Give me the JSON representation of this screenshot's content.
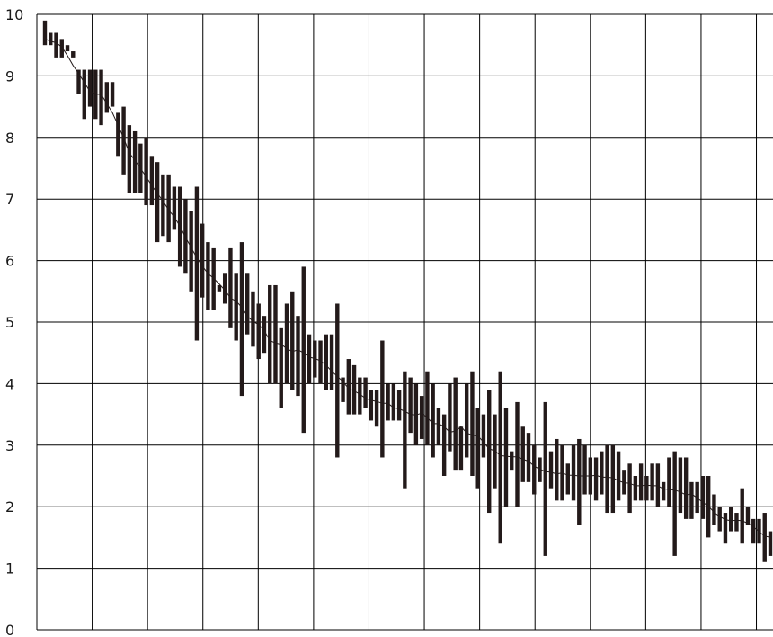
{
  "chart_data": {
    "type": "candlestick",
    "title": "",
    "xlabel": "",
    "ylabel": "",
    "ylim": [
      0,
      10
    ],
    "y_ticks": [
      0,
      1,
      2,
      3,
      4,
      5,
      6,
      7,
      8,
      9,
      10
    ],
    "y_tick_labels": [
      "0",
      "1",
      "2",
      "3",
      "4",
      "5",
      "6",
      "7",
      "8",
      "9",
      "10"
    ],
    "x_tick_labels": [],
    "x_vertical_gridlines": 14,
    "grid": true,
    "colors": {
      "bar": "#231a1a",
      "grid": "#000000",
      "line": "#231a1a",
      "text": "#1a1a1a"
    },
    "series": [
      {
        "ranges": [
          [
            9.5,
            9.9
          ],
          [
            9.5,
            9.7
          ],
          [
            9.3,
            9.7
          ],
          [
            9.3,
            9.6
          ],
          [
            9.4,
            9.5
          ],
          [
            9.3,
            9.4
          ],
          [
            8.7,
            9.1
          ],
          [
            8.3,
            9.1
          ],
          [
            8.5,
            9.1
          ],
          [
            8.3,
            9.1
          ],
          [
            8.2,
            9.1
          ],
          [
            8.4,
            8.9
          ],
          [
            8.5,
            8.9
          ],
          [
            7.7,
            8.4
          ],
          [
            7.4,
            8.5
          ],
          [
            7.1,
            8.2
          ],
          [
            7.1,
            8.1
          ],
          [
            7.1,
            7.9
          ],
          [
            6.9,
            8.0
          ],
          [
            6.9,
            7.7
          ],
          [
            6.3,
            7.6
          ],
          [
            6.4,
            7.4
          ],
          [
            6.3,
            7.4
          ],
          [
            6.5,
            7.2
          ],
          [
            5.9,
            7.2
          ],
          [
            5.8,
            7.0
          ],
          [
            5.5,
            6.8
          ],
          [
            4.7,
            7.2
          ],
          [
            5.4,
            6.6
          ],
          [
            5.2,
            6.3
          ],
          [
            5.2,
            6.2
          ],
          [
            5.5,
            5.6
          ],
          [
            5.3,
            5.8
          ],
          [
            4.9,
            6.2
          ],
          [
            4.7,
            5.8
          ],
          [
            3.8,
            6.3
          ],
          [
            4.8,
            5.8
          ],
          [
            4.6,
            5.5
          ],
          [
            4.4,
            5.3
          ],
          [
            4.5,
            5.1
          ],
          [
            4.0,
            5.6
          ],
          [
            4.0,
            5.6
          ],
          [
            3.6,
            4.9
          ],
          [
            4.0,
            5.3
          ],
          [
            3.9,
            5.5
          ],
          [
            3.8,
            5.1
          ],
          [
            3.2,
            5.9
          ],
          [
            4.0,
            4.8
          ],
          [
            4.1,
            4.7
          ],
          [
            4.0,
            4.7
          ],
          [
            3.9,
            4.8
          ],
          [
            3.9,
            4.8
          ],
          [
            2.8,
            5.3
          ],
          [
            3.7,
            4.1
          ],
          [
            3.5,
            4.4
          ],
          [
            3.5,
            4.3
          ],
          [
            3.5,
            4.1
          ],
          [
            3.6,
            4.1
          ],
          [
            3.4,
            3.9
          ],
          [
            3.3,
            3.9
          ],
          [
            2.8,
            4.7
          ],
          [
            3.4,
            4.0
          ],
          [
            3.4,
            4.0
          ],
          [
            3.4,
            3.9
          ],
          [
            2.3,
            4.2
          ],
          [
            3.2,
            4.1
          ],
          [
            3.0,
            4.0
          ],
          [
            3.1,
            3.8
          ],
          [
            3.0,
            4.2
          ],
          [
            2.8,
            4.0
          ],
          [
            3.0,
            3.6
          ],
          [
            2.5,
            3.5
          ],
          [
            2.9,
            4.0
          ],
          [
            2.6,
            4.1
          ],
          [
            2.6,
            3.3
          ],
          [
            2.8,
            4.0
          ],
          [
            2.5,
            4.2
          ],
          [
            2.3,
            3.6
          ],
          [
            2.8,
            3.5
          ],
          [
            1.9,
            3.9
          ],
          [
            2.3,
            3.5
          ],
          [
            1.4,
            4.2
          ],
          [
            2.0,
            3.6
          ],
          [
            2.6,
            2.9
          ],
          [
            2.0,
            3.7
          ],
          [
            2.4,
            3.3
          ],
          [
            2.4,
            3.2
          ],
          [
            2.2,
            3.0
          ],
          [
            2.4,
            2.8
          ],
          [
            1.2,
            3.7
          ],
          [
            2.3,
            2.9
          ],
          [
            2.1,
            3.1
          ],
          [
            2.1,
            3.0
          ],
          [
            2.2,
            2.7
          ],
          [
            2.1,
            3.0
          ],
          [
            1.7,
            3.1
          ],
          [
            2.2,
            3.0
          ],
          [
            2.2,
            2.8
          ],
          [
            2.1,
            2.8
          ],
          [
            2.2,
            2.9
          ],
          [
            1.9,
            3.0
          ],
          [
            1.9,
            3.0
          ],
          [
            2.1,
            2.9
          ],
          [
            2.2,
            2.6
          ],
          [
            1.9,
            2.7
          ],
          [
            2.1,
            2.5
          ],
          [
            2.1,
            2.7
          ],
          [
            2.1,
            2.5
          ],
          [
            2.1,
            2.7
          ],
          [
            2.0,
            2.7
          ],
          [
            2.1,
            2.4
          ],
          [
            2.0,
            2.8
          ],
          [
            1.2,
            2.9
          ],
          [
            1.9,
            2.8
          ],
          [
            1.8,
            2.8
          ],
          [
            1.8,
            2.4
          ],
          [
            1.9,
            2.4
          ],
          [
            1.8,
            2.5
          ],
          [
            1.5,
            2.5
          ],
          [
            1.7,
            2.2
          ],
          [
            1.6,
            2.0
          ],
          [
            1.4,
            1.9
          ],
          [
            1.6,
            2.0
          ],
          [
            1.6,
            1.9
          ],
          [
            1.4,
            2.3
          ],
          [
            1.7,
            2.0
          ],
          [
            1.4,
            1.8
          ],
          [
            1.4,
            1.8
          ],
          [
            1.1,
            1.9
          ],
          [
            1.2,
            1.6
          ]
        ]
      }
    ]
  }
}
